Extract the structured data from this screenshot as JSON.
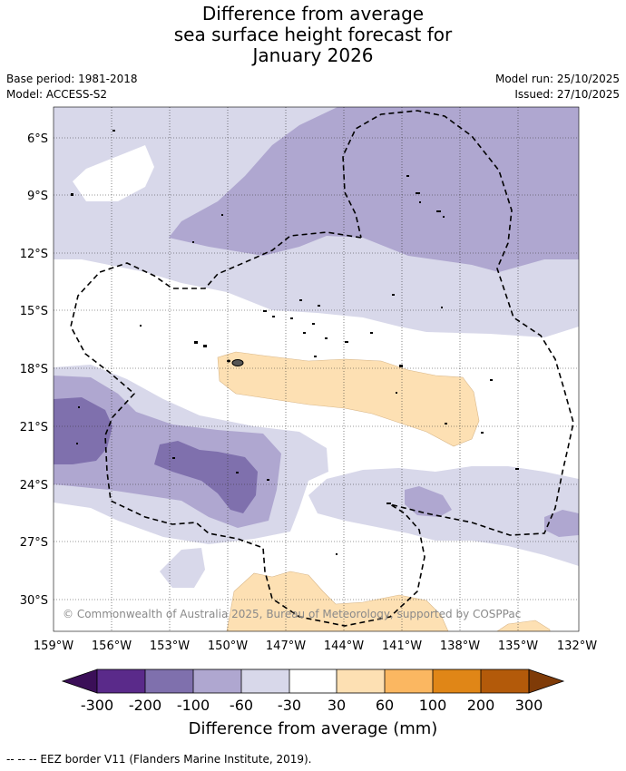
{
  "title": {
    "line1": "Difference from average",
    "line2": "sea surface height forecast for",
    "line3": "January 2026"
  },
  "meta": {
    "base_period": "Base period: 1981-2018",
    "model": "Model: ACCESS-S2",
    "model_run": "Model run: 25/10/2025",
    "issued": "Issued: 27/10/2025"
  },
  "map": {
    "lat_labels": [
      "6°S",
      "9°S",
      "12°S",
      "15°S",
      "18°S",
      "21°S",
      "24°S",
      "27°S",
      "30°S"
    ],
    "lon_labels": [
      "159°W",
      "156°W",
      "153°W",
      "150°W",
      "147°W",
      "144°W",
      "141°W",
      "138°W",
      "135°W",
      "132°W"
    ],
    "copyright": "© Commonwealth of Australia 2025, Bureau of Meteorology, supported by COSPPac"
  },
  "colorbar": {
    "labels": [
      "-300",
      "-200",
      "-100",
      "-60",
      "-30",
      "30",
      "60",
      "100",
      "200",
      "300"
    ],
    "colors": [
      "#3b0f58",
      "#5a2a8a",
      "#7f70ad",
      "#afa7d0",
      "#d8d8ea",
      "#ffffff",
      "#fde0b3",
      "#fbb761",
      "#e08617",
      "#b35a0a",
      "#7f3b08"
    ],
    "title": "Difference from average (mm)"
  },
  "footer": {
    "legend": "--  --  -- EEZ border V11 (Flanders Marine Institute, 2019)."
  }
}
